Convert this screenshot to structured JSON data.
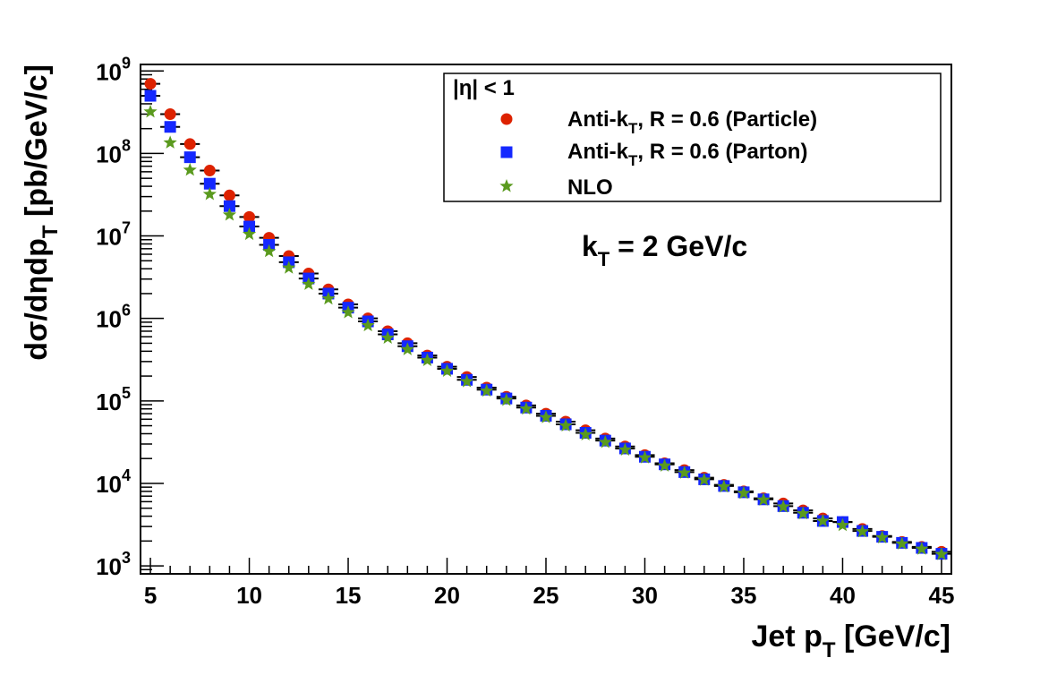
{
  "chart_data": {
    "type": "scatter",
    "xlabel": {
      "main": "Jet p",
      "sub": "T",
      "tail": " [GeV/c]"
    },
    "ylabel": {
      "main": "dσ/dηdp",
      "sub": "T",
      "tail": " [pb/GeV/c]"
    },
    "xlim": [
      4.5,
      45.5
    ],
    "ylim": [
      800,
      1200000000
    ],
    "yscale": "log",
    "grid": false,
    "x_ticks": [
      "5",
      "10",
      "15",
      "20",
      "25",
      "30",
      "35",
      "40",
      "45"
    ],
    "y_ticks": [
      {
        "base": "10",
        "exp": "3"
      },
      {
        "base": "10",
        "exp": "4"
      },
      {
        "base": "10",
        "exp": "5"
      },
      {
        "base": "10",
        "exp": "6"
      },
      {
        "base": "10",
        "exp": "7"
      },
      {
        "base": "10",
        "exp": "8"
      },
      {
        "base": "10",
        "exp": "9"
      }
    ],
    "legend_position": "top-right",
    "legend_header": "|η| < 1",
    "annotation": {
      "main": "k",
      "sub": "T",
      "tail": " = 2 GeV/c"
    },
    "x": [
      5,
      6,
      7,
      8,
      9,
      10,
      11,
      12,
      13,
      14,
      15,
      16,
      17,
      18,
      19,
      20,
      21,
      22,
      23,
      24,
      25,
      26,
      27,
      28,
      29,
      30,
      31,
      32,
      33,
      34,
      35,
      36,
      37,
      38,
      39,
      40,
      41,
      42,
      43,
      44,
      45
    ],
    "series": [
      {
        "name": {
          "main": "Anti-k",
          "sub": "T",
          "tail": ", R = 0.6 (Particle)"
        },
        "marker": "circle",
        "color": "#dd2200",
        "values": [
          700000000,
          300000000,
          130000000,
          62000000,
          31000000,
          17000000,
          9500000,
          5700000,
          3500000,
          2250000,
          1480000,
          1000000,
          700000,
          500000,
          355000,
          260000,
          195000,
          145000,
          112000,
          88000,
          70000,
          56000,
          44000,
          35000,
          28000,
          22000,
          17500,
          14500,
          11700,
          9600,
          8000,
          6600,
          5700,
          4700,
          3750,
          3400,
          2800,
          2300,
          1950,
          1700,
          1480
        ]
      },
      {
        "name": {
          "main": "Anti-k",
          "sub": "T",
          "tail": ", R = 0.6 (Parton)"
        },
        "marker": "square",
        "color": "#1428ff",
        "values": [
          500000000,
          210000000,
          90000000,
          43000000,
          23000000,
          13000000,
          7800000,
          4800000,
          3050000,
          2000000,
          1350000,
          920000,
          640000,
          460000,
          335000,
          245000,
          180000,
          137000,
          107000,
          83000,
          66000,
          52000,
          41000,
          33000,
          26500,
          21000,
          17000,
          13700,
          11200,
          9300,
          7800,
          6400,
          5300,
          4400,
          3500,
          3400,
          2650,
          2250,
          1900,
          1650,
          1400
        ]
      },
      {
        "name": {
          "main": "NLO",
          "sub": "",
          "tail": ""
        },
        "marker": "star",
        "color": "#5a9a1e",
        "values": [
          320000000,
          135000000,
          63000000,
          32000000,
          18000000,
          10500000,
          6500000,
          4100000,
          2600000,
          1730000,
          1180000,
          820000,
          580000,
          420000,
          310000,
          230000,
          172000,
          132000,
          102000,
          80000,
          63000,
          50000,
          39000,
          31500,
          25500,
          20500,
          16300,
          13400,
          11000,
          9100,
          7600,
          6300,
          5200,
          4300,
          3500,
          3100,
          2600,
          2200,
          1850,
          1600,
          1380
        ]
      }
    ]
  }
}
